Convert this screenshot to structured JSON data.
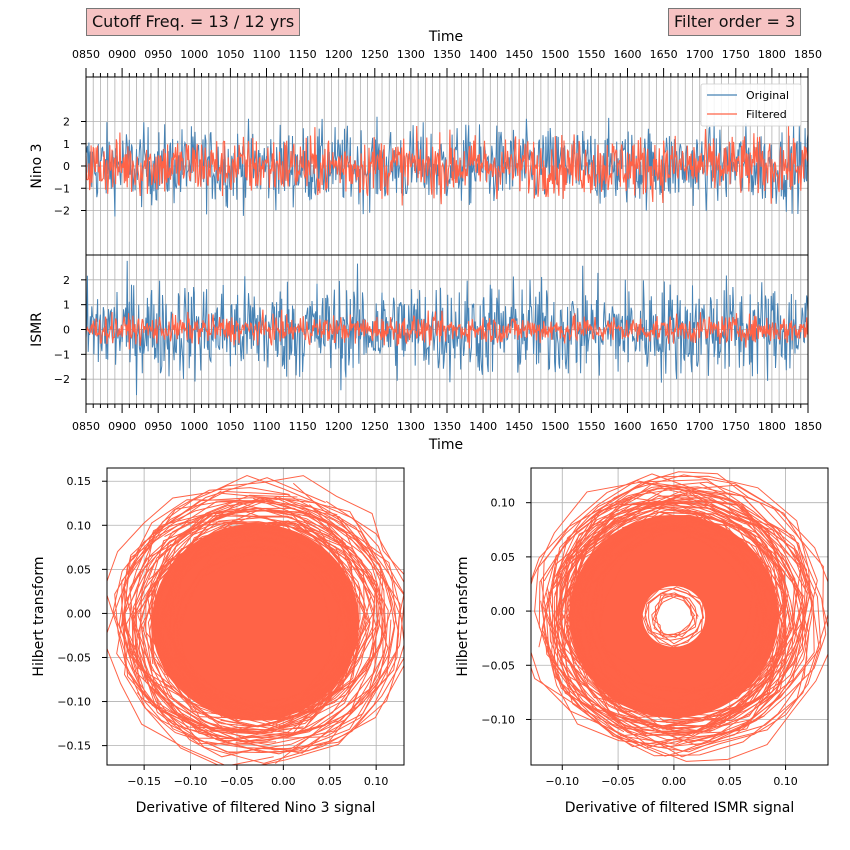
{
  "annotations": {
    "cutoff": "Cutoff Freq. = 13 / 12 yrs",
    "order": "Filter order = 3"
  },
  "chart_data": [
    {
      "type": "line",
      "panel": "nino3-timeseries",
      "xlabel": "Time",
      "ylabel": "Nino 3",
      "xlim": [
        850,
        1850
      ],
      "ylim": [
        -4,
        4
      ],
      "xticks": [
        "0850",
        "0900",
        "0950",
        "1000",
        "1050",
        "1100",
        "1150",
        "1200",
        "1250",
        "1300",
        "1350",
        "1400",
        "1450",
        "1500",
        "1550",
        "1600",
        "1650",
        "1700",
        "1750",
        "1800",
        "1850"
      ],
      "yticks": [
        -2,
        -1,
        0,
        1,
        2
      ],
      "xaxis_position": "top",
      "grid": true,
      "legend": {
        "position": "top-right",
        "entries": [
          "Original",
          "Filtered"
        ]
      },
      "series": [
        {
          "name": "Original",
          "color": "#4682b4",
          "approx_range": [
            -2.7,
            2.6
          ]
        },
        {
          "name": "Filtered",
          "color": "#ff6347",
          "approx_range": [
            -2.0,
            1.8
          ]
        }
      ]
    },
    {
      "type": "line",
      "panel": "ismr-timeseries",
      "xlabel": "Time",
      "ylabel": "ISMR",
      "xlim": [
        850,
        1850
      ],
      "ylim": [
        -3,
        3
      ],
      "xticks": [
        "0850",
        "0900",
        "0950",
        "1000",
        "1050",
        "1100",
        "1150",
        "1200",
        "1250",
        "1300",
        "1350",
        "1400",
        "1450",
        "1500",
        "1550",
        "1600",
        "1650",
        "1700",
        "1750",
        "1800",
        "1850"
      ],
      "yticks": [
        -2,
        -1,
        0,
        1,
        2
      ],
      "grid": true,
      "series": [
        {
          "name": "Original",
          "color": "#4682b4",
          "approx_range": [
            -3.0,
            3.0
          ]
        },
        {
          "name": "Filtered",
          "color": "#ff6347",
          "approx_range": [
            -0.8,
            0.8
          ]
        }
      ]
    },
    {
      "type": "line",
      "panel": "nino3-phase",
      "xlabel": "Derivative of filtered Nino 3 signal",
      "ylabel": "Hilbert transform",
      "xlim": [
        -0.19,
        0.13
      ],
      "ylim": [
        -0.172,
        0.165
      ],
      "xticks": [
        -0.15,
        -0.1,
        -0.05,
        0.0,
        0.05,
        0.1
      ],
      "yticks": [
        -0.15,
        -0.1,
        -0.05,
        0.0,
        0.05,
        0.1,
        0.15
      ],
      "tick_labels_x": [
        "−0.15",
        "−0.10",
        "−0.05",
        "0.00",
        "0.05",
        "0.10"
      ],
      "tick_labels_y": [
        "−0.15",
        "−0.10",
        "−0.05",
        "0.00",
        "0.05",
        "0.10",
        "0.15"
      ],
      "grid": true,
      "series": [
        {
          "name": "Filtered",
          "color": "#ff6347",
          "center": [
            -0.03,
            -0.01
          ],
          "radius_range": [
            0.05,
            0.155
          ]
        }
      ]
    },
    {
      "type": "line",
      "panel": "ismr-phase",
      "xlabel": "Derivative of filtered ISMR signal",
      "ylabel": "Hilbert transform",
      "xlim": [
        -0.128,
        0.138
      ],
      "ylim": [
        -0.142,
        0.132
      ],
      "xticks": [
        -0.1,
        -0.05,
        0.0,
        0.05,
        0.1
      ],
      "yticks": [
        -0.1,
        -0.05,
        0.0,
        0.05,
        0.1
      ],
      "tick_labels_x": [
        "−0.10",
        "−0.05",
        "0.00",
        "0.05",
        "0.10"
      ],
      "tick_labels_y": [
        "−0.10",
        "−0.05",
        "0.00",
        "0.05",
        "0.10"
      ],
      "grid": true,
      "series": [
        {
          "name": "Filtered",
          "color": "#ff6347",
          "center": [
            0.0,
            -0.005
          ],
          "radius_range": [
            0.02,
            0.13
          ]
        }
      ]
    }
  ]
}
